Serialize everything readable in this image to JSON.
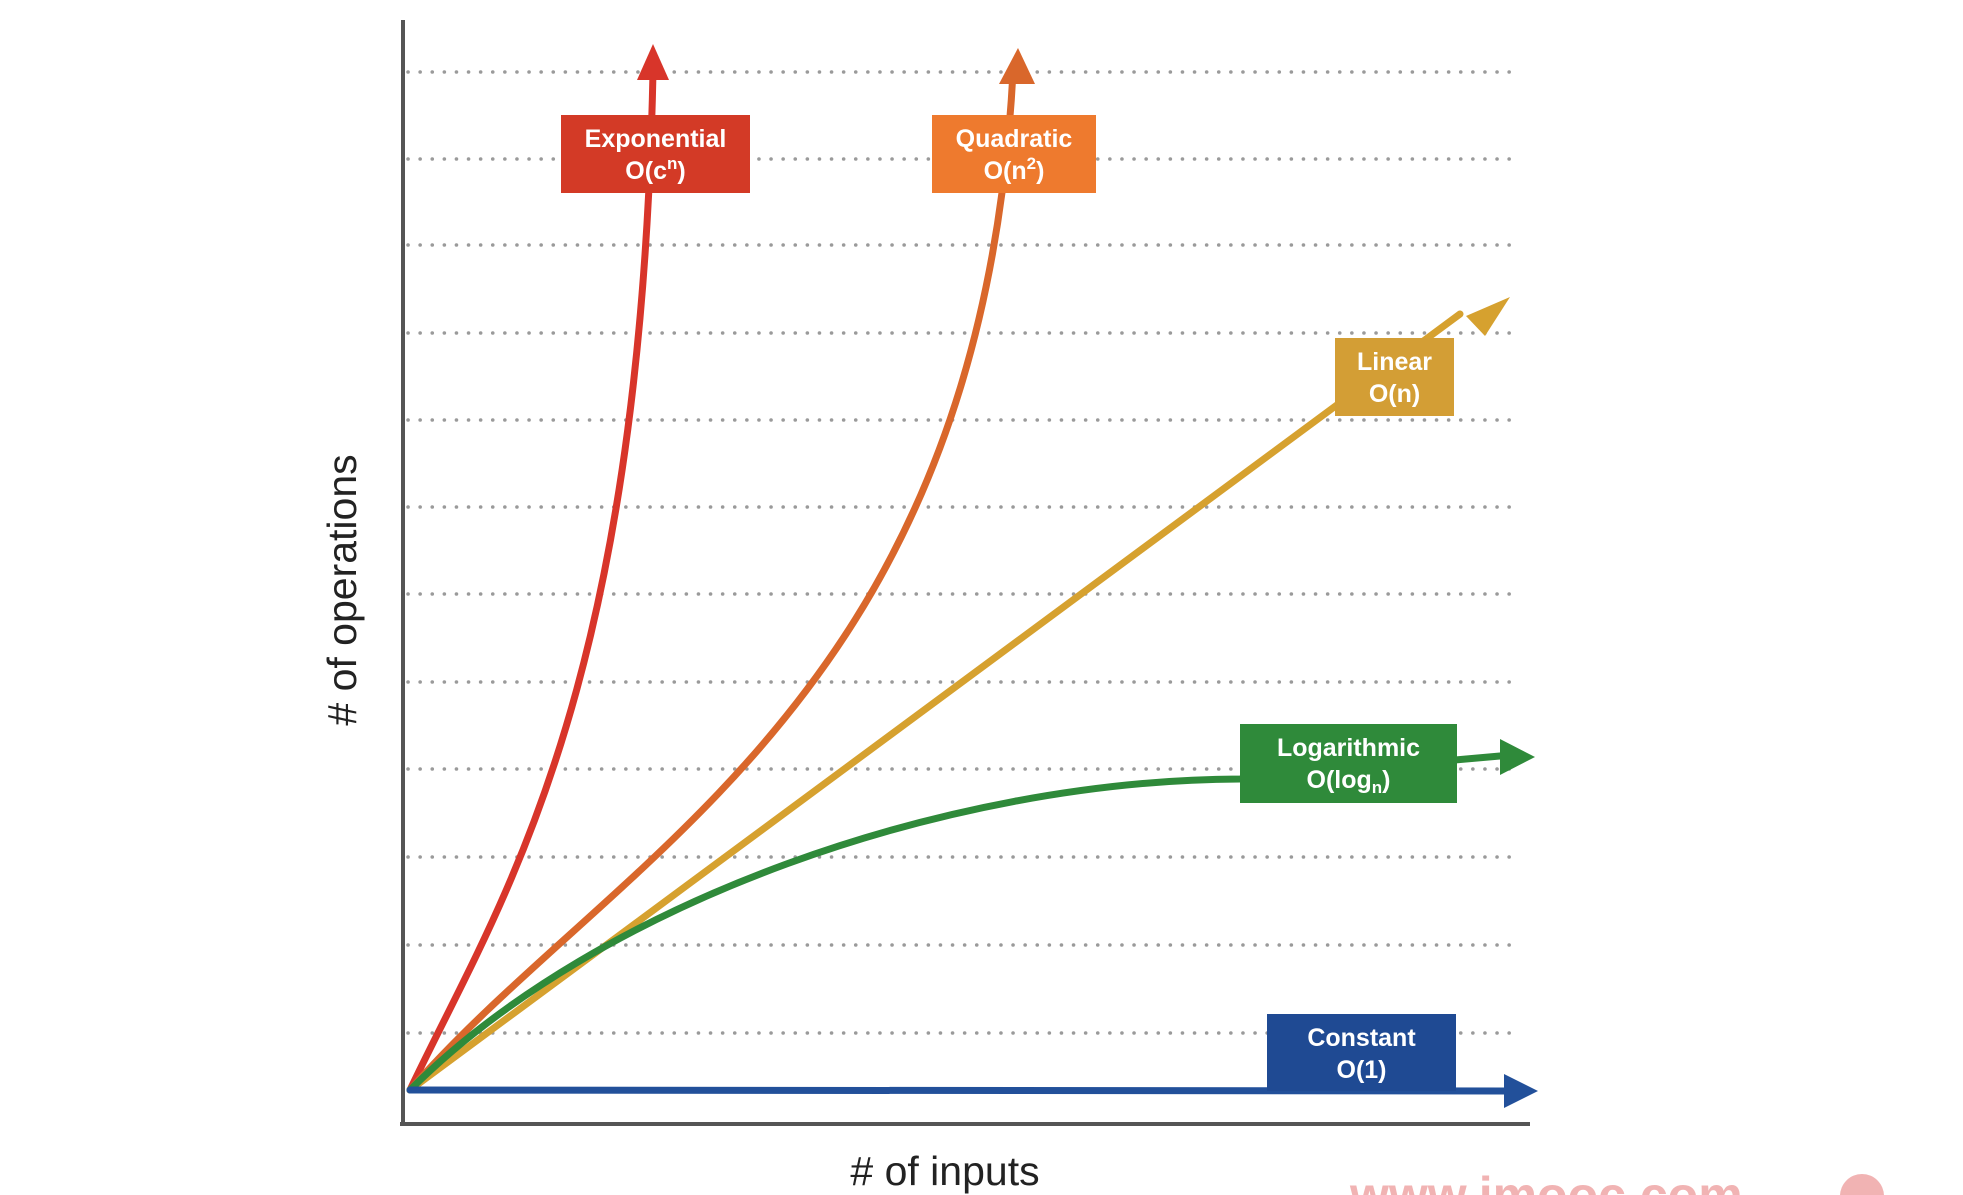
{
  "chart_data": {
    "type": "line",
    "xlabel": "# of inputs",
    "ylabel": "# of operations",
    "grid": true,
    "series": [
      {
        "name": "Exponential",
        "notation": "O(c",
        "notation_sup": "n",
        "notation_end": ")",
        "color": "#d8352a",
        "box_color": "#d33a26"
      },
      {
        "name": "Quadratic",
        "notation": "O(n",
        "notation_sup": "2",
        "notation_end": ")",
        "color": "#d9672b",
        "box_color": "#ee7a2e"
      },
      {
        "name": "Linear",
        "notation": "O(n)",
        "color": "#d6a12f",
        "box_color": "#d39e35"
      },
      {
        "name": "Logarithmic",
        "notation": "O(log",
        "notation_sub": "n",
        "notation_end": ")",
        "color": "#2f8a3a",
        "box_color": "#2f8a3a"
      },
      {
        "name": "Constant",
        "notation": "O(1)",
        "color": "#22509a",
        "box_color": "#1f4a93"
      }
    ]
  },
  "watermark": "www.imooc.com"
}
